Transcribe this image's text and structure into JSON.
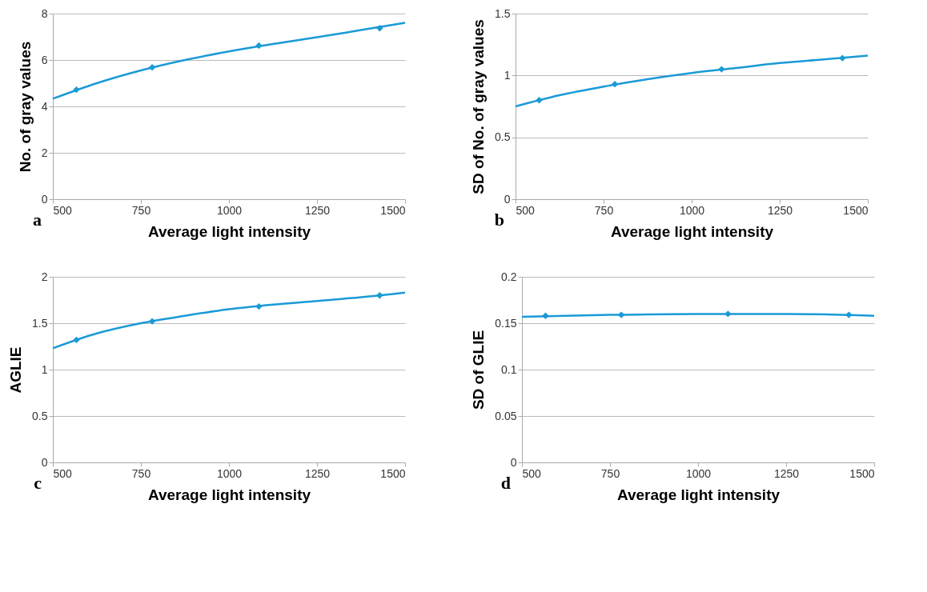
{
  "chart_data": [
    {
      "type": "scatter",
      "xlabel": "Average light intensity",
      "ylabel": "No. of gray values",
      "annotations": [
        "a"
      ],
      "xlim": [
        500,
        1500
      ],
      "xticks": [
        500,
        750,
        1000,
        1250,
        1500
      ],
      "ylim": [
        0,
        8
      ],
      "yticks": [
        0,
        2,
        4,
        6,
        8
      ],
      "grid": "y",
      "marker": "diamond",
      "series": [
        {
          "type": "line",
          "marker": "none",
          "color": "#1a9ad6",
          "x": [
            500,
            625,
            750,
            875,
            1000,
            1125,
            1250,
            1375,
            1500
          ],
          "values": [
            4.33,
            5.0,
            5.55,
            6.0,
            6.37,
            6.69,
            6.98,
            7.29,
            7.6
          ]
        },
        {
          "type": "scatter",
          "color": "#1a9ad6",
          "x": [
            567,
            782,
            1085,
            1428
          ],
          "values": [
            4.72,
            5.68,
            6.62,
            7.37
          ]
        }
      ]
    },
    {
      "type": "scatter",
      "xlabel": "Average light intensity",
      "ylabel": "SD of No. of gray values",
      "annotations": [
        "b"
      ],
      "xlim": [
        500,
        1500
      ],
      "xticks": [
        500,
        750,
        1000,
        1250,
        1500
      ],
      "ylim": [
        0,
        1.5
      ],
      "yticks": [
        0,
        0.5,
        1,
        1.5
      ],
      "grid": "y",
      "marker": "diamond",
      "series": [
        {
          "type": "line",
          "marker": "none",
          "color": "#1a9ad6",
          "x": [
            500,
            625,
            750,
            875,
            1000,
            1125,
            1250,
            1375,
            1500
          ],
          "values": [
            0.75,
            0.84,
            0.91,
            0.97,
            1.02,
            1.06,
            1.1,
            1.13,
            1.16
          ]
        },
        {
          "type": "scatter",
          "color": "#1a9ad6",
          "x": [
            567,
            782,
            1085,
            1428
          ],
          "values": [
            0.8,
            0.93,
            1.05,
            1.14
          ]
        }
      ]
    },
    {
      "type": "scatter",
      "xlabel": "Average light intensity",
      "ylabel": "AGLIE",
      "annotations": [
        "c"
      ],
      "xlim": [
        500,
        1500
      ],
      "xticks": [
        500,
        750,
        1000,
        1250,
        1500
      ],
      "ylim": [
        0,
        2
      ],
      "yticks": [
        0,
        0.5,
        1,
        1.5,
        2
      ],
      "grid": "y",
      "marker": "diamond",
      "series": [
        {
          "type": "line",
          "marker": "none",
          "color": "#1a9ad6",
          "x": [
            500,
            625,
            750,
            875,
            1000,
            1125,
            1250,
            1375,
            1500
          ],
          "values": [
            1.23,
            1.39,
            1.5,
            1.58,
            1.65,
            1.7,
            1.74,
            1.78,
            1.83
          ]
        },
        {
          "type": "scatter",
          "color": "#1a9ad6",
          "x": [
            567,
            782,
            1085,
            1428
          ],
          "values": [
            1.32,
            1.52,
            1.68,
            1.8
          ]
        }
      ]
    },
    {
      "type": "scatter",
      "xlabel": "Average light intensity",
      "ylabel": "SD of GLIE",
      "annotations": [
        "d"
      ],
      "xlim": [
        500,
        1500
      ],
      "xticks": [
        500,
        750,
        1000,
        1250,
        1500
      ],
      "ylim": [
        0,
        0.2
      ],
      "yticks": [
        0,
        0.05,
        0.1,
        0.15,
        0.2
      ],
      "grid": "y",
      "marker": "diamond",
      "series": [
        {
          "type": "line",
          "marker": "none",
          "color": "#1a9ad6",
          "x": [
            500,
            750,
            1000,
            1250,
            1500
          ],
          "values": [
            0.157,
            0.159,
            0.16,
            0.16,
            0.158
          ]
        },
        {
          "type": "scatter",
          "color": "#1a9ad6",
          "x": [
            567,
            782,
            1085,
            1428
          ],
          "values": [
            0.158,
            0.159,
            0.16,
            0.159
          ]
        }
      ]
    }
  ]
}
